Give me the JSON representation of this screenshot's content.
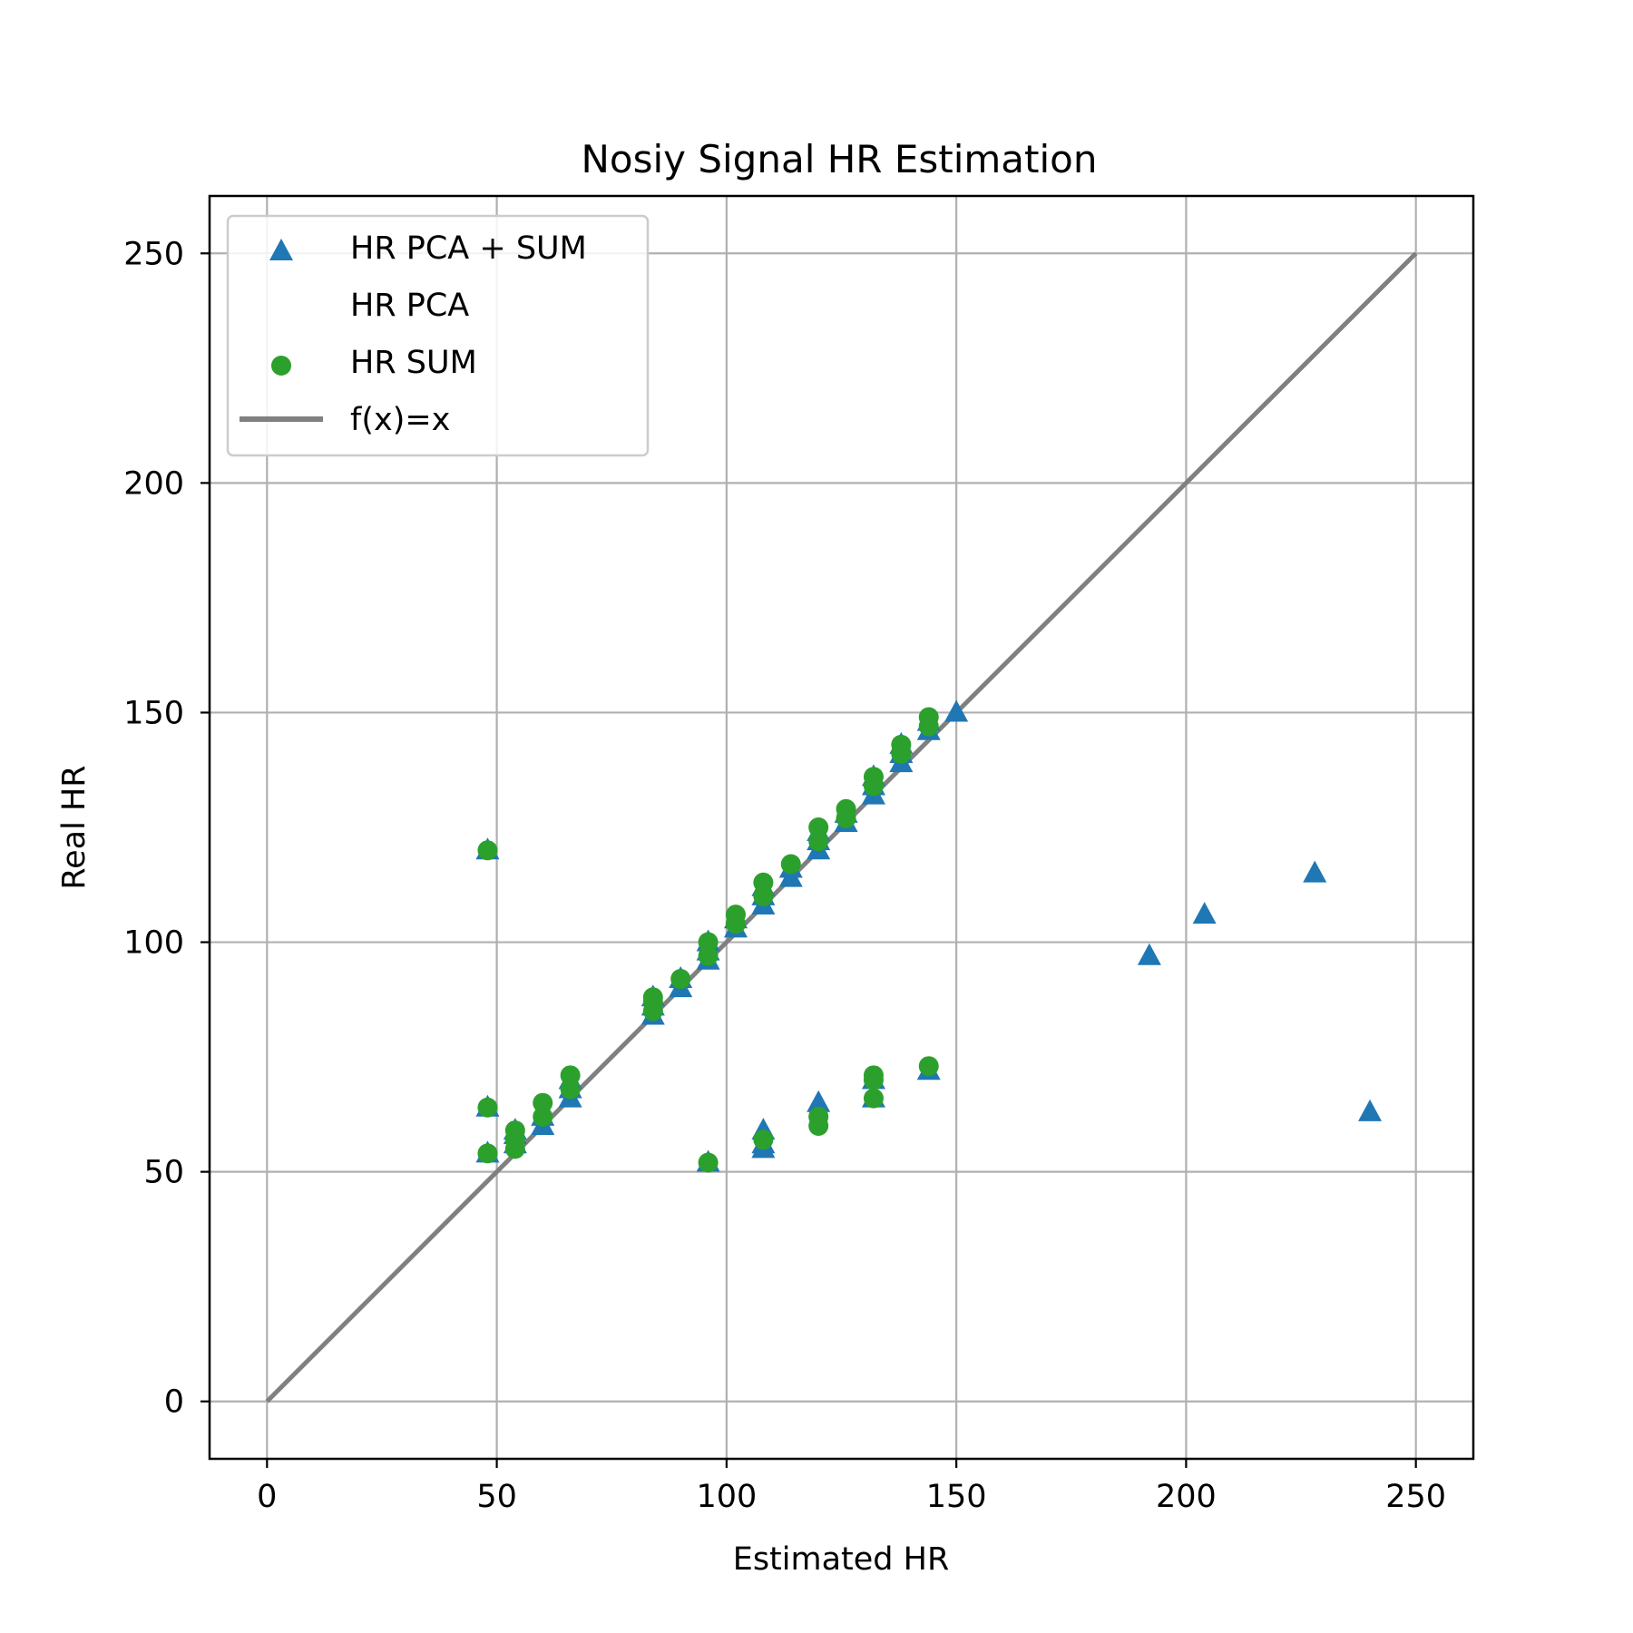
{
  "chart_data": {
    "type": "scatter",
    "title": "Nosiy Signal HR Estimation",
    "xlabel": "Estimated HR",
    "ylabel": "Real HR",
    "xlim": [
      -12.5,
      262.5
    ],
    "ylim": [
      -12.5,
      262.5
    ],
    "xticks": [
      0,
      50,
      100,
      150,
      200,
      250
    ],
    "yticks": [
      0,
      50,
      100,
      150,
      200,
      250
    ],
    "xtick_labels": [
      "0",
      "50",
      "100",
      "150",
      "200",
      "250"
    ],
    "ytick_labels": [
      "0",
      "50",
      "100",
      "150",
      "200",
      "250"
    ],
    "grid": true,
    "legend_position": "upper-left",
    "series": [
      {
        "name": "HR PCA + SUM",
        "marker": "triangle",
        "color": "#1f77b4",
        "points": [
          [
            48,
            64
          ],
          [
            48,
            54
          ],
          [
            48,
            120
          ],
          [
            54,
            56
          ],
          [
            54,
            58
          ],
          [
            54,
            59
          ],
          [
            60,
            60
          ],
          [
            60,
            62
          ],
          [
            66,
            66
          ],
          [
            66,
            68
          ],
          [
            66,
            70
          ],
          [
            84,
            84
          ],
          [
            84,
            86
          ],
          [
            84,
            88
          ],
          [
            90,
            90
          ],
          [
            90,
            92
          ],
          [
            96,
            96
          ],
          [
            96,
            98
          ],
          [
            96,
            100
          ],
          [
            96,
            52
          ],
          [
            102,
            103
          ],
          [
            102,
            105
          ],
          [
            108,
            108
          ],
          [
            108,
            110
          ],
          [
            108,
            112
          ],
          [
            108,
            55
          ],
          [
            108,
            56
          ],
          [
            108,
            59
          ],
          [
            114,
            114
          ],
          [
            114,
            116
          ],
          [
            120,
            120
          ],
          [
            120,
            122
          ],
          [
            120,
            124
          ],
          [
            120,
            65
          ],
          [
            126,
            126
          ],
          [
            126,
            128
          ],
          [
            132,
            132
          ],
          [
            132,
            134
          ],
          [
            132,
            136
          ],
          [
            132,
            66
          ],
          [
            132,
            70
          ],
          [
            138,
            139
          ],
          [
            138,
            141
          ],
          [
            138,
            143
          ],
          [
            144,
            146
          ],
          [
            144,
            148
          ],
          [
            144,
            72
          ],
          [
            150,
            150
          ],
          [
            192,
            97
          ],
          [
            204,
            106
          ],
          [
            228,
            115
          ],
          [
            240,
            63
          ]
        ]
      },
      {
        "name": "HR PCA",
        "marker": "none",
        "color": "#ffffff",
        "points": []
      },
      {
        "name": "HR SUM",
        "marker": "circle",
        "color": "#2ca02c",
        "points": [
          [
            48,
            64
          ],
          [
            48,
            54
          ],
          [
            48,
            120
          ],
          [
            54,
            55
          ],
          [
            54,
            57
          ],
          [
            54,
            59
          ],
          [
            60,
            62
          ],
          [
            60,
            65
          ],
          [
            66,
            68
          ],
          [
            66,
            71
          ],
          [
            84,
            85
          ],
          [
            84,
            87
          ],
          [
            84,
            88
          ],
          [
            90,
            92
          ],
          [
            96,
            97
          ],
          [
            96,
            100
          ],
          [
            96,
            52
          ],
          [
            102,
            104
          ],
          [
            102,
            106
          ],
          [
            108,
            110
          ],
          [
            108,
            113
          ],
          [
            108,
            57
          ],
          [
            114,
            117
          ],
          [
            120,
            122
          ],
          [
            120,
            125
          ],
          [
            120,
            60
          ],
          [
            120,
            62
          ],
          [
            126,
            127
          ],
          [
            126,
            129
          ],
          [
            132,
            134
          ],
          [
            132,
            136
          ],
          [
            132,
            66
          ],
          [
            132,
            70
          ],
          [
            132,
            71
          ],
          [
            138,
            141
          ],
          [
            138,
            143
          ],
          [
            144,
            147
          ],
          [
            144,
            149
          ],
          [
            144,
            73
          ]
        ]
      },
      {
        "name": "f(x)=x",
        "type": "line",
        "color": "#808080",
        "x": [
          0,
          250
        ],
        "y": [
          0,
          250
        ]
      }
    ]
  }
}
